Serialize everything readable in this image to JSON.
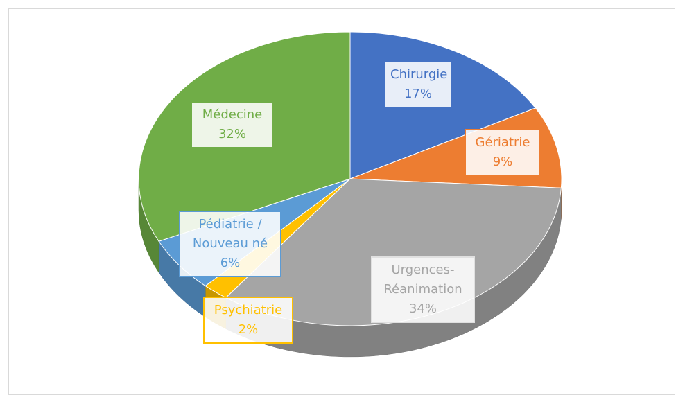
{
  "chart_data": {
    "type": "pie",
    "categories": [
      "Chirurgie",
      "Gériatrie",
      "Urgences-Réanimation",
      "Psychiatrie",
      "Pédiatrie / Nouveau né",
      "Médecine"
    ],
    "values": [
      17,
      9,
      34,
      2,
      6,
      32
    ],
    "value_labels": [
      "17%",
      "9%",
      "34%",
      "2%",
      "6%",
      "32%"
    ],
    "colors": [
      "#4472c4",
      "#ed7d31",
      "#a5a5a5",
      "#ffc000",
      "#5b9bd5",
      "#70ad47"
    ]
  }
}
